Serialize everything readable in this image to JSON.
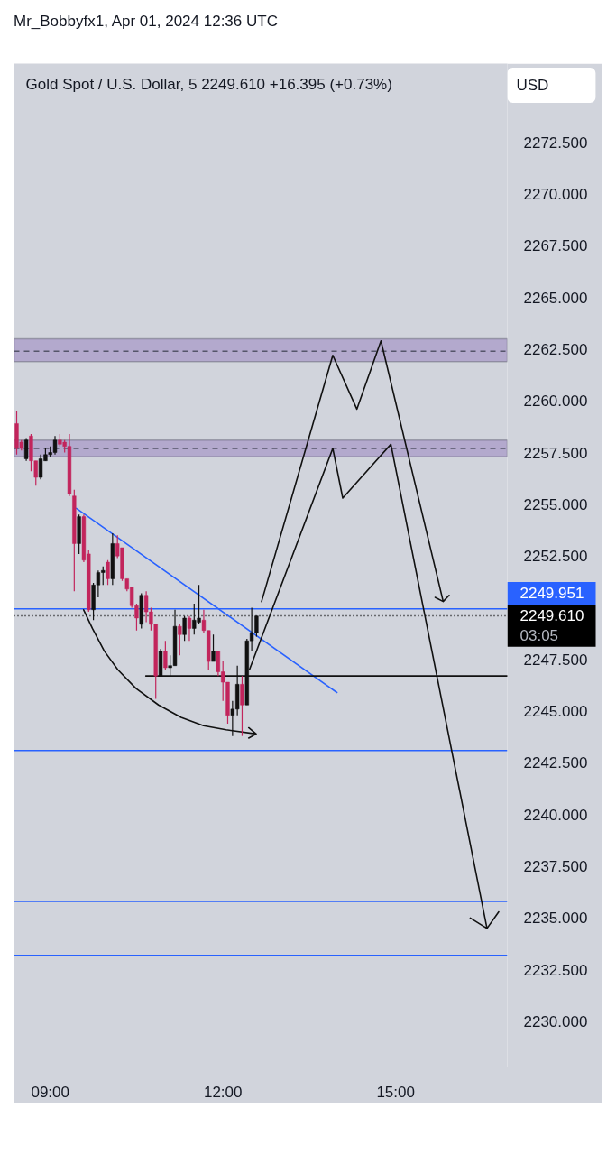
{
  "chart_data": {
    "type": "candlestick",
    "title": "Gold Spot / U.S. Dollar, 5 2249.610 +16.395 (+0.73%)",
    "subtitle": "Mr_Bobbyfx1, Apr 01, 2024 12:36 UTC",
    "annotations": [
      "USD"
    ],
    "x": [
      8.417,
      8.5,
      8.583,
      8.667,
      8.75,
      8.833,
      8.917,
      9,
      9.083,
      9.167,
      9.25,
      9.333,
      9.417,
      9.5,
      9.583,
      9.667,
      9.75,
      9.833,
      9.917,
      10,
      10.083,
      10.167,
      10.25,
      10.333,
      10.417,
      10.5,
      10.583,
      10.667,
      10.75,
      10.833,
      10.917,
      11,
      11.083,
      11.167,
      11.25,
      11.333,
      11.417,
      11.5,
      11.583,
      11.667,
      11.75,
      11.833,
      11.917,
      12,
      12.083,
      12.167,
      12.25,
      12.333,
      12.417,
      12.5,
      12.583
    ],
    "ohlc": [
      [
        2258.9,
        2259.5,
        2257.4,
        2257.7
      ],
      [
        2258.0,
        2258.1,
        2257.6,
        2257.7
      ],
      [
        2257.2,
        2258.2,
        2257.1,
        2258.1
      ],
      [
        2258.3,
        2258.4,
        2256.6,
        2257.1
      ],
      [
        2257.1,
        2257.1,
        2255.9,
        2256.3
      ],
      [
        2256.3,
        2257.4,
        2256.2,
        2257.2
      ],
      [
        2257.1,
        2257.7,
        2257.1,
        2257.4
      ],
      [
        2257.4,
        2257.8,
        2257.3,
        2257.5
      ],
      [
        2257.5,
        2258.3,
        2257.4,
        2258.1
      ],
      [
        2258.1,
        2258.4,
        2257.8,
        2257.9
      ],
      [
        2258.0,
        2258.1,
        2257.5,
        2257.8
      ],
      [
        2257.8,
        2258.4,
        2255.4,
        2255.5
      ],
      [
        2255.4,
        2255.7,
        2250.8,
        2253.1
      ],
      [
        2253.1,
        2254.5,
        2252.6,
        2254.4
      ],
      [
        2254.4,
        2254.5,
        2252.2,
        2252.3
      ],
      [
        2252.6,
        2252.8,
        2249.8,
        2249.9
      ],
      [
        2249.9,
        2251.2,
        2249.4,
        2251.1
      ],
      [
        2251.1,
        2251.8,
        2250.5,
        2251.7
      ],
      [
        2251.7,
        2252.0,
        2251.1,
        2251.8
      ],
      [
        2252.2,
        2252.3,
        2251.1,
        2251.4
      ],
      [
        2251.4,
        2253.6,
        2251.1,
        2253.1
      ],
      [
        2253.1,
        2253.5,
        2252.4,
        2252.5
      ],
      [
        2252.9,
        2252.9,
        2251.3,
        2251.4
      ],
      [
        2251.4,
        2251.4,
        2250.8,
        2250.9
      ],
      [
        2251.0,
        2251.0,
        2250.0,
        2250.1
      ],
      [
        2250.1,
        2250.2,
        2248.9,
        2249.5
      ],
      [
        2249.2,
        2250.7,
        2249.0,
        2250.6
      ],
      [
        2250.6,
        2250.8,
        2249.3,
        2249.8
      ],
      [
        2249.8,
        2250.0,
        2248.9,
        2249.2
      ],
      [
        2249.2,
        2249.2,
        2245.6,
        2246.7
      ],
      [
        2246.7,
        2248.0,
        2246.7,
        2247.9
      ],
      [
        2247.9,
        2248.4,
        2247.0,
        2247.1
      ],
      [
        2247.1,
        2247.7,
        2246.7,
        2247.2
      ],
      [
        2247.2,
        2249.9,
        2247.2,
        2249.1
      ],
      [
        2249.1,
        2249.2,
        2247.7,
        2248.7
      ],
      [
        2248.7,
        2249.6,
        2248.4,
        2249.5
      ],
      [
        2249.5,
        2249.6,
        2248.4,
        2249.0
      ],
      [
        2249.0,
        2250.2,
        2248.7,
        2249.4
      ],
      [
        2249.3,
        2251.1,
        2249.2,
        2249.5
      ],
      [
        2249.4,
        2249.9,
        2248.8,
        2248.9
      ],
      [
        2248.9,
        2248.9,
        2247.0,
        2247.4
      ],
      [
        2247.4,
        2248.7,
        2247.4,
        2247.9
      ],
      [
        2247.9,
        2247.9,
        2246.7,
        2246.9
      ],
      [
        2246.9,
        2247.4,
        2245.5,
        2246.4
      ],
      [
        2246.4,
        2246.4,
        2244.4,
        2244.8
      ],
      [
        2244.8,
        2245.5,
        2243.8,
        2245.1
      ],
      [
        2245.1,
        2247.2,
        2244.8,
        2246.3
      ],
      [
        2246.3,
        2246.7,
        2243.8,
        2245.3
      ],
      [
        2245.3,
        2248.5,
        2245.3,
        2248.4
      ],
      [
        2248.4,
        2250.0,
        2247.9,
        2248.8
      ],
      [
        2248.8,
        2249.6,
        2248.6,
        2249.6
      ]
    ],
    "colors": [
      "#c2255c",
      "#c2255c",
      "#111111",
      "#c2255c",
      "#c2255c",
      "#111111",
      "#111111",
      "#111111",
      "#111111",
      "#c2255c",
      "#c2255c",
      "#c2255c",
      "#c2255c",
      "#111111",
      "#c2255c",
      "#c2255c",
      "#111111",
      "#111111",
      "#111111",
      "#c2255c",
      "#111111",
      "#c2255c",
      "#c2255c",
      "#c2255c",
      "#c2255c",
      "#c2255c",
      "#111111",
      "#c2255c",
      "#c2255c",
      "#c2255c",
      "#111111",
      "#c2255c",
      "#111111",
      "#111111",
      "#c2255c",
      "#111111",
      "#c2255c",
      "#111111",
      "#111111",
      "#c2255c",
      "#c2255c",
      "#111111",
      "#c2255c",
      "#c2255c",
      "#c2255c",
      "#111111",
      "#111111",
      "#c2255c",
      "#111111",
      "#111111",
      "#111111"
    ],
    "series": [
      {
        "type": "line",
        "color": "#2962ff",
        "x": [
          9.454,
          13.98
        ],
        "values": [
          2254.8,
          2245.9
        ]
      },
      {
        "type": "line",
        "color": "#111111",
        "x": [
          10.66,
          16.94
        ],
        "values": [
          2246.7,
          2246.7
        ]
      },
      {
        "type": "line",
        "color": "#111111",
        "x": [
          9.58,
          9.732,
          9.94,
          10.175,
          10.488,
          10.88,
          11.272,
          11.663,
          12.055,
          12.577,
          12.447,
          12.577,
          12.447
        ],
        "values": [
          2249.9,
          2249.0,
          2247.9,
          2247.0,
          2246.1,
          2245.3,
          2244.7,
          2244.3,
          2244.1,
          2243.9,
          2244.2,
          2243.9,
          2243.7
        ]
      },
      {
        "type": "line",
        "color": "#111111",
        "x": [
          12.671,
          13.908,
          14.326,
          14.745,
          15.826,
          15.685,
          15.826,
          15.929
        ],
        "values": [
          2250.3,
          2262.2,
          2259.6,
          2262.9,
          2250.3,
          2250.5,
          2250.3,
          2250.6
        ]
      },
      {
        "type": "line",
        "color": "#111111",
        "x": [
          12.46,
          13.908,
          14.081,
          14.917,
          16.587,
          16.296,
          16.587,
          16.791
        ],
        "values": [
          2247.0,
          2257.7,
          2255.3,
          2257.9,
          2234.5,
          2235.0,
          2234.5,
          2235.3
        ]
      }
    ],
    "bands": [
      {
        "axis": "y",
        "from": 2261.9,
        "to": 2263.0,
        "color": "#b3a9cd"
      },
      {
        "axis": "y",
        "from": 2257.3,
        "to": 2258.1,
        "color": "#b3a9cd"
      }
    ],
    "ref_lines": [
      {
        "axis": "y",
        "value": 2262.4,
        "color": "#55556a",
        "line_style": "dashed"
      },
      {
        "axis": "y",
        "value": 2257.7,
        "color": "#55556a",
        "line_style": "dashed"
      },
      {
        "axis": "y",
        "value": 2249.951,
        "label": "2249.951",
        "color": "#2962ff"
      },
      {
        "axis": "y",
        "value": 2249.61,
        "label": "2249.610\n03:05",
        "color": "#000000",
        "line_style": "dotted"
      },
      {
        "axis": "y",
        "value": 2243.1,
        "color": "#2962ff"
      },
      {
        "axis": "y",
        "value": 2235.8,
        "color": "#2962ff"
      },
      {
        "axis": "y",
        "value": 2233.2,
        "color": "#2962ff"
      }
    ],
    "xlim": [
      8.37,
      16.94
    ],
    "ylim": [
      2227.8,
      2276.3
    ],
    "xticks": [
      {
        "value": 9,
        "label": "09:00"
      },
      {
        "value": 12,
        "label": "12:00"
      },
      {
        "value": 15,
        "label": "15:00"
      }
    ],
    "yticks": [
      {
        "value": 2230,
        "label": "2230.000"
      },
      {
        "value": 2232.5,
        "label": "2232.500"
      },
      {
        "value": 2235,
        "label": "2235.000"
      },
      {
        "value": 2237.5,
        "label": "2237.500"
      },
      {
        "value": 2240,
        "label": "2240.000"
      },
      {
        "value": 2242.5,
        "label": "2242.500"
      },
      {
        "value": 2245,
        "label": "2245.000"
      },
      {
        "value": 2247.5,
        "label": "2247.500"
      },
      {
        "value": 2252.5,
        "label": "2252.500"
      },
      {
        "value": 2255,
        "label": "2255.000"
      },
      {
        "value": 2257.5,
        "label": "2257.500"
      },
      {
        "value": 2260,
        "label": "2260.000"
      },
      {
        "value": 2262.5,
        "label": "2262.500"
      },
      {
        "value": 2265,
        "label": "2265.000"
      },
      {
        "value": 2267.5,
        "label": "2267.500"
      },
      {
        "value": 2270,
        "label": "2270.000"
      },
      {
        "value": 2272.5,
        "label": "2272.500"
      }
    ]
  }
}
